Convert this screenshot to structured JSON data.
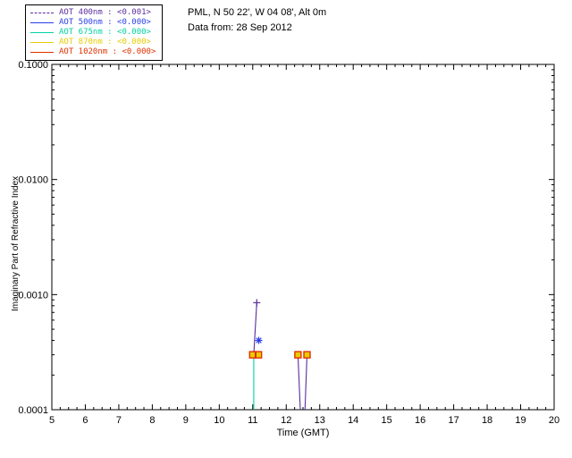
{
  "header": {
    "line1": "PML, N 50 22', W 04 08', Alt 0m",
    "line2": "Data from: 28 Sep 2012"
  },
  "chart_data": {
    "type": "scatter",
    "title": "",
    "xlabel": "Time (GMT)",
    "ylabel": "Imaginary Part of Refractive Index",
    "xlim": [
      5,
      20
    ],
    "ylim": [
      0.0001,
      0.1
    ],
    "yscale": "log",
    "grid": false,
    "legend_position": "top-left",
    "xticks": [
      5,
      6,
      7,
      8,
      9,
      10,
      11,
      12,
      13,
      14,
      15,
      16,
      17,
      18,
      19,
      20
    ],
    "yticks": [
      {
        "value": 0.0001,
        "label": "0.0001"
      },
      {
        "value": 0.001,
        "label": "0.0010"
      },
      {
        "value": 0.01,
        "label": "0.0100"
      },
      {
        "value": 0.1,
        "label": "0.1000"
      }
    ],
    "series": [
      {
        "name": "AOT  400nm",
        "value": "<0.001>",
        "color": "#5a2d9e",
        "dash": true,
        "marker": "plus",
        "lines": [
          [
            [
              11.03,
              0.0003
            ],
            [
              11.12,
              0.00085
            ]
          ],
          [
            [
              12.35,
              0.0003
            ],
            [
              12.42,
              0.0001
            ]
          ],
          [
            [
              12.56,
              0.0001
            ],
            [
              12.62,
              0.0003
            ]
          ]
        ],
        "markers": [
          [
            11.12,
            0.00085
          ]
        ]
      },
      {
        "name": "AOT  500nm",
        "value": "<0.000>",
        "color": "#2a3fe8",
        "dash": false,
        "marker": "asterisk",
        "lines": [],
        "markers": [
          [
            11.18,
            0.0004
          ]
        ]
      },
      {
        "name": "AOT  675nm",
        "value": "<0.000>",
        "color": "#00d2a0",
        "dash": false,
        "marker": "none",
        "lines": [
          [
            [
              11.03,
              0.0003
            ],
            [
              11.03,
              0.0001
            ]
          ]
        ],
        "markers": []
      },
      {
        "name": "AOT  870nm",
        "value": "<0.000>",
        "color": "#e8cc00",
        "dash": false,
        "marker": "square-filled",
        "lines": [],
        "markers": [
          [
            11.0,
            0.0003
          ],
          [
            11.17,
            0.0003
          ],
          [
            12.35,
            0.0003
          ],
          [
            12.62,
            0.0003
          ]
        ]
      },
      {
        "name": "AOT 1020nm",
        "value": "<0.000>",
        "color": "#e03000",
        "dash": false,
        "marker": "square-open",
        "lines": [],
        "markers": [
          [
            11.0,
            0.0003
          ],
          [
            11.17,
            0.0003
          ],
          [
            12.35,
            0.0003
          ],
          [
            12.62,
            0.0003
          ]
        ]
      }
    ]
  }
}
